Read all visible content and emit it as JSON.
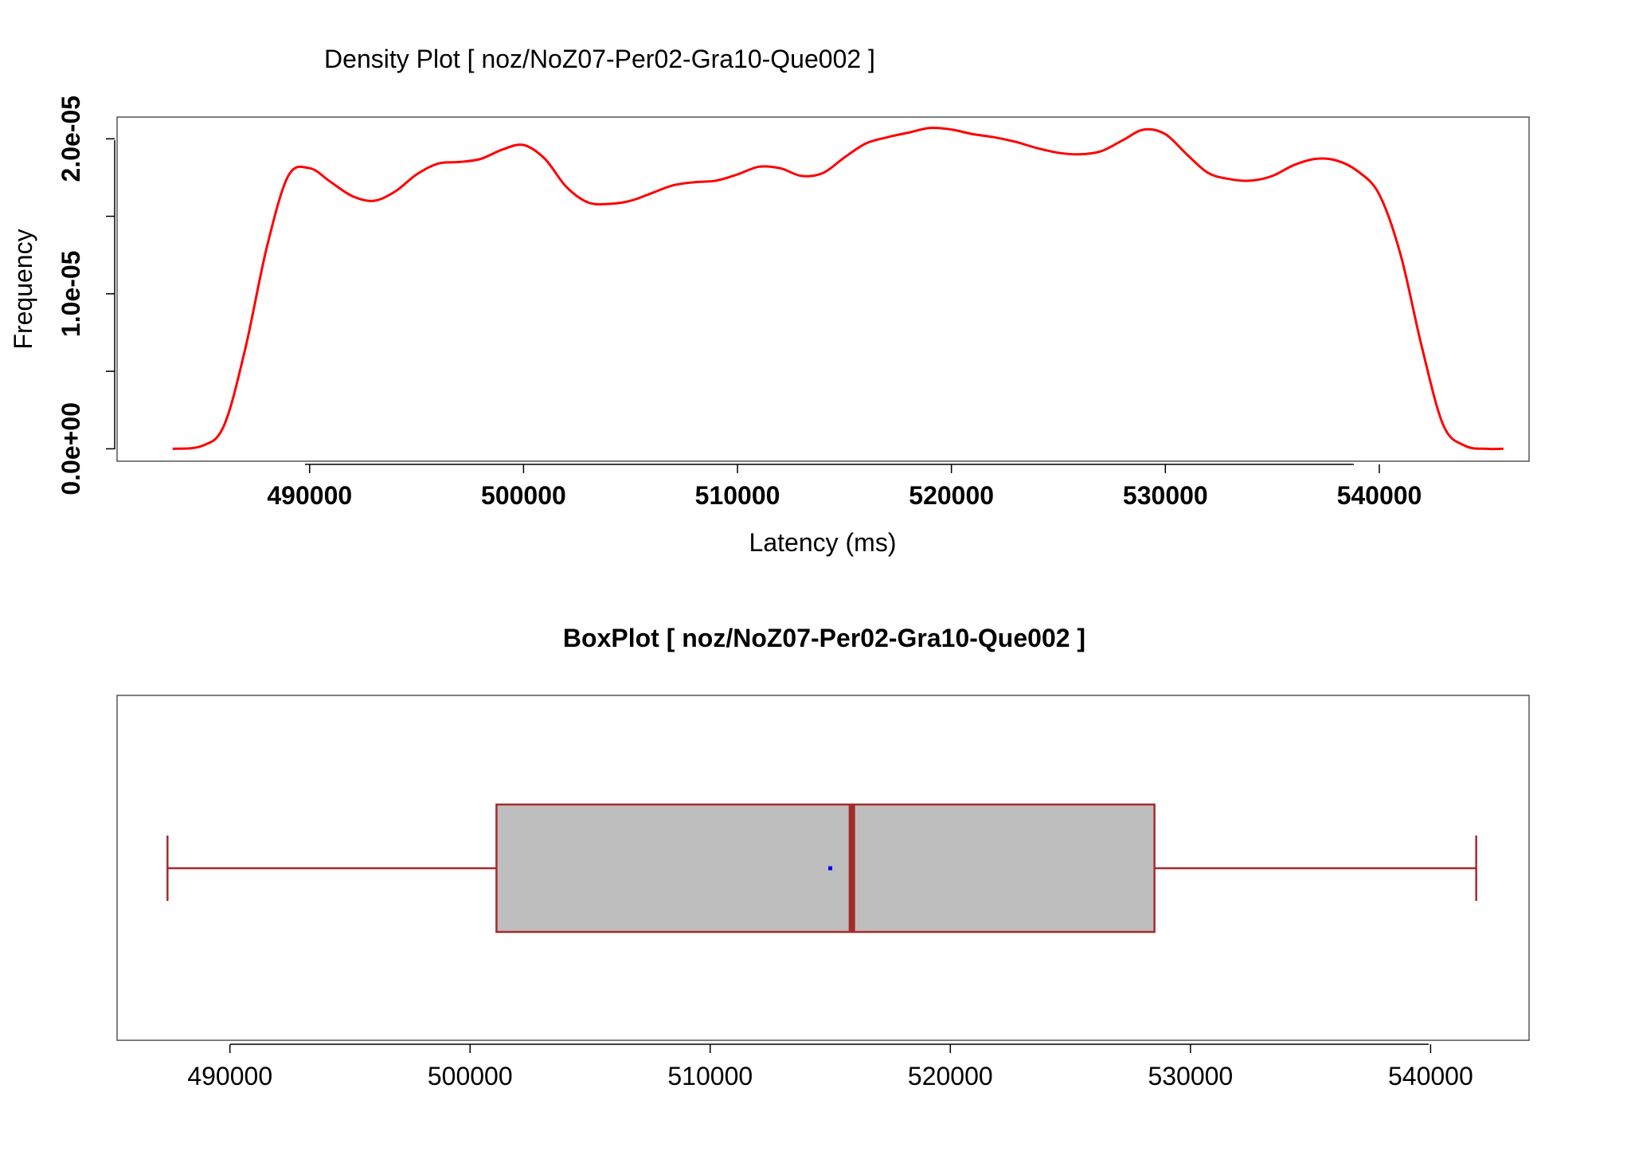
{
  "chart_data": [
    {
      "type": "area",
      "title": "Density Plot [ noz/NoZ07-Per02-Gra10-Que002 ]",
      "xlabel": "Latency (ms)",
      "ylabel": "Frequency",
      "xlim": [
        481000,
        547000
      ],
      "ylim": [
        -8e-07,
        2.14e-05
      ],
      "x_ticks": [
        490000,
        500000,
        510000,
        520000,
        530000,
        540000
      ],
      "x_tick_labels": [
        "490000",
        "500000",
        "510000",
        "520000",
        "530000",
        "540000"
      ],
      "y_ticks": [
        0,
        5e-06,
        1e-05,
        1.5e-05,
        2e-05
      ],
      "y_tick_labels": [
        "0.0e+00",
        "",
        "1.0e-05",
        "",
        "2.0e-05"
      ],
      "series": [
        {
          "color": "#ff0000",
          "x": [
            483600,
            485000,
            486000,
            487000,
            488000,
            489000,
            490000,
            491000,
            492000,
            493000,
            494000,
            495000,
            496000,
            497000,
            498000,
            499000,
            500000,
            501000,
            502000,
            503000,
            504000,
            505000,
            506000,
            507000,
            508000,
            509000,
            510000,
            511000,
            512000,
            513000,
            514000,
            515000,
            516000,
            517000,
            518000,
            519000,
            520000,
            521000,
            522000,
            523000,
            524000,
            525000,
            526000,
            527000,
            528000,
            529000,
            530000,
            531000,
            532000,
            533000,
            534000,
            535000,
            536000,
            537000,
            538000,
            539000,
            540000,
            541000,
            542000,
            543000,
            544000,
            545000,
            545800
          ],
          "y": [
            0.0,
            2e-07,
            1.5e-06,
            6.5e-06,
            1.3e-05,
            1.76e-05,
            1.81e-05,
            1.72e-05,
            1.63e-05,
            1.6e-05,
            1.66e-05,
            1.77e-05,
            1.84e-05,
            1.85e-05,
            1.87e-05,
            1.93e-05,
            1.96e-05,
            1.87e-05,
            1.69e-05,
            1.59e-05,
            1.58e-05,
            1.6e-05,
            1.65e-05,
            1.7e-05,
            1.72e-05,
            1.73e-05,
            1.77e-05,
            1.82e-05,
            1.81e-05,
            1.76e-05,
            1.78e-05,
            1.88e-05,
            1.97e-05,
            2.01e-05,
            2.04e-05,
            2.07e-05,
            2.06e-05,
            2.03e-05,
            2.01e-05,
            1.98e-05,
            1.94e-05,
            1.91e-05,
            1.9e-05,
            1.92e-05,
            1.99e-05,
            2.06e-05,
            2.03e-05,
            1.9e-05,
            1.78e-05,
            1.74e-05,
            1.73e-05,
            1.76e-05,
            1.83e-05,
            1.87e-05,
            1.86e-05,
            1.79e-05,
            1.64e-05,
            1.25e-05,
            6.5e-06,
            1.5e-06,
            2e-07,
            0.0,
            0.0
          ]
        }
      ]
    },
    {
      "type": "boxplot",
      "title": "BoxPlot [ noz/NoZ07-Per02-Gra10-Que002 ]",
      "xlabel": "",
      "ylabel": "",
      "xlim": [
        485300,
        544100
      ],
      "x_ticks": [
        490000,
        500000,
        510000,
        520000,
        530000,
        540000
      ],
      "x_tick_labels": [
        "490000",
        "500000",
        "510000",
        "520000",
        "530000",
        "540000"
      ],
      "box": {
        "whisker_low": 487400,
        "q1": 501100,
        "median": 515900,
        "q3": 528500,
        "whisker_high": 541900,
        "mean": 515000
      },
      "colors": {
        "box_fill": "#bebebe",
        "box_stroke": "#a52a2a",
        "mean_marker": "#0000ff"
      }
    }
  ]
}
